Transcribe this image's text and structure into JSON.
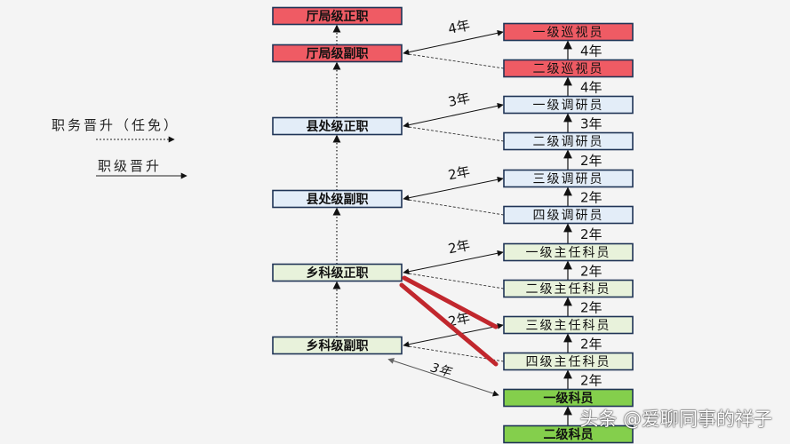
{
  "legend": {
    "appointment": "职务晋升（任免）",
    "rank": "职级晋升"
  },
  "colors": {
    "red": "#ef5b64",
    "blue": "#e3edf8",
    "green": "#e8f2db",
    "bright_green": "#84cf4c",
    "border": "#1f3456",
    "highlight_line": "#c1272d"
  },
  "positions": [
    {
      "label": "厅局级正职",
      "tier": "red"
    },
    {
      "label": "厅局级副职",
      "tier": "red"
    },
    {
      "label": "县处级正职",
      "tier": "blue"
    },
    {
      "label": "县处级副职",
      "tier": "blue"
    },
    {
      "label": "乡科级正职",
      "tier": "green"
    },
    {
      "label": "乡科级副职",
      "tier": "green"
    }
  ],
  "ranks": [
    {
      "label": "一级巡视员",
      "tier": "red"
    },
    {
      "label": "二级巡视员",
      "tier": "red"
    },
    {
      "label": "一级调研员",
      "tier": "blue"
    },
    {
      "label": "二级调研员",
      "tier": "blue"
    },
    {
      "label": "三级调研员",
      "tier": "blue"
    },
    {
      "label": "四级调研员",
      "tier": "blue"
    },
    {
      "label": "一级主任科员",
      "tier": "green"
    },
    {
      "label": "二级主任科员",
      "tier": "green"
    },
    {
      "label": "三级主任科员",
      "tier": "green"
    },
    {
      "label": "四级主任科员",
      "tier": "green"
    },
    {
      "label": "一级科员",
      "tier": "bright_green"
    },
    {
      "label": "二级科员",
      "tier": "bright_green"
    }
  ],
  "rank_intervals": [
    "4年",
    "4年",
    "3年",
    "2年",
    "2年",
    "2年",
    "2年",
    "2年",
    "2年",
    "2年"
  ],
  "cross_links": [
    {
      "position": 1,
      "rank": 0,
      "dashed_rank": 1,
      "label": "4年"
    },
    {
      "position": 2,
      "rank": 2,
      "dashed_rank": 3,
      "label": "3年"
    },
    {
      "position": 3,
      "rank": 4,
      "dashed_rank": 5,
      "label": "2年"
    },
    {
      "position": 4,
      "rank": 6,
      "dashed_rank": 7,
      "label": "2年"
    },
    {
      "position": 5,
      "rank": 8,
      "dashed_rank": 9,
      "label": "2年"
    }
  ],
  "entry_link": {
    "position": 5,
    "rank": 10,
    "label": "3年"
  },
  "watermark": "头条 @爱聊同事的祥子"
}
